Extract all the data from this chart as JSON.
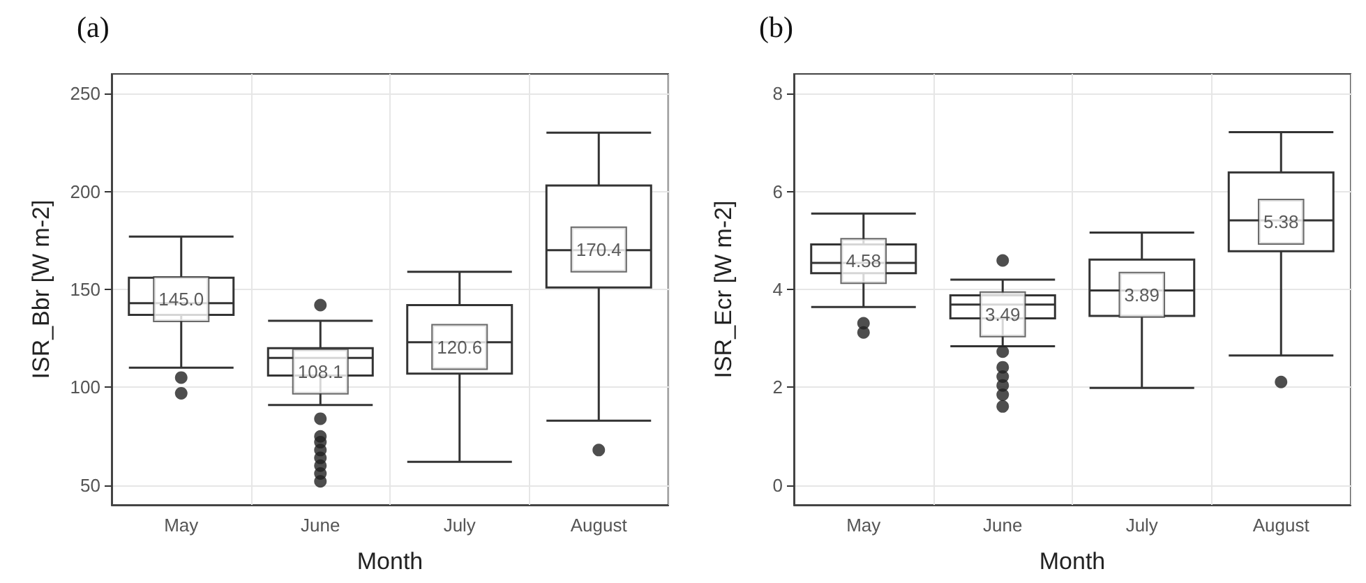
{
  "chart_data": [
    {
      "type": "box",
      "title": "(a)",
      "xlabel": "Month",
      "ylabel": "ISR_Bbr [W m-2]",
      "categories": [
        "May",
        "June",
        "July",
        "August"
      ],
      "boxes": [
        {
          "low": 110,
          "q1": 137,
          "median": 143,
          "q3": 156,
          "high": 177,
          "mean": 145.0,
          "outliers": [
            105,
            97
          ]
        },
        {
          "low": 91,
          "q1": 106,
          "median": 115,
          "q3": 120,
          "high": 134,
          "mean": 108.1,
          "outliers": [
            142,
            84,
            75,
            72,
            68,
            64,
            60,
            56,
            52
          ]
        },
        {
          "low": 62,
          "q1": 107,
          "median": 123,
          "q3": 142,
          "high": 159,
          "mean": 120.6
        },
        {
          "low": 83,
          "q1": 151,
          "median": 170,
          "q3": 203,
          "high": 230,
          "mean": 170.4,
          "outliers": [
            68
          ]
        }
      ],
      "value_labels": [
        "145.0",
        "108.1",
        "120.6",
        "170.4"
      ],
      "ylim": [
        40,
        260
      ],
      "yticks": [
        50,
        100,
        150,
        200,
        250
      ],
      "grid": true,
      "marker": "circle"
    },
    {
      "type": "box",
      "title": "(b)",
      "xlabel": "Month",
      "ylabel": "ISR_Ecr [W m-2]",
      "categories": [
        "May",
        "June",
        "July",
        "August"
      ],
      "boxes": [
        {
          "low": 3.64,
          "q1": 4.33,
          "median": 4.54,
          "q3": 4.92,
          "high": 5.55,
          "mean": 4.58,
          "outliers": [
            3.31,
            3.12
          ]
        },
        {
          "low": 2.84,
          "q1": 3.41,
          "median": 3.69,
          "q3": 3.88,
          "high": 4.2,
          "mean": 3.49,
          "outliers": [
            4.59,
            2.73,
            2.41,
            2.22,
            2.04,
            1.85,
            1.61
          ]
        },
        {
          "low": 1.99,
          "q1": 3.46,
          "median": 3.98,
          "q3": 4.61,
          "high": 5.16,
          "mean": 3.89
        },
        {
          "low": 2.65,
          "q1": 4.78,
          "median": 5.41,
          "q3": 6.39,
          "high": 7.21,
          "mean": 5.38,
          "outliers": [
            2.11
          ]
        }
      ],
      "value_labels": [
        "4.58",
        "3.49",
        "3.89",
        "5.38"
      ],
      "ylim": [
        -0.4,
        8.4
      ],
      "yticks": [
        0,
        2,
        4,
        6,
        8
      ],
      "grid": true,
      "marker": "circle"
    }
  ]
}
